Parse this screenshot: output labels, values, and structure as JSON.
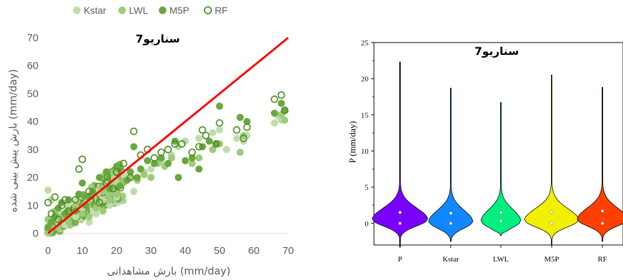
{
  "chart_data": [
    {
      "type": "scatter",
      "title": "سناریو7",
      "xlabel": "بارش مشاهداتی (mm/day)",
      "ylabel": "بارش پیش بینی شده (mm/day)",
      "xlim": [
        0,
        70
      ],
      "ylim": [
        0,
        70
      ],
      "xticks": [
        "0",
        "10",
        "20",
        "30",
        "40",
        "50",
        "60",
        "70"
      ],
      "yticks": [
        "0",
        "10",
        "20",
        "30",
        "40",
        "50",
        "60",
        "70"
      ],
      "grid": false,
      "legend_position": "top",
      "series": [
        {
          "name": "Kstar",
          "marker": "filled-circle",
          "color": "#bfdcab",
          "points": [
            [
              0,
              15.5
            ],
            [
              1,
              12
            ],
            [
              2,
              5
            ],
            [
              3,
              8
            ],
            [
              5,
              3
            ],
            [
              6,
              11
            ],
            [
              8,
              6
            ],
            [
              10,
              9
            ],
            [
              12,
              4
            ],
            [
              14,
              7
            ],
            [
              16,
              12
            ],
            [
              18,
              10
            ],
            [
              20,
              13
            ],
            [
              22,
              21
            ],
            [
              25,
              15
            ],
            [
              28,
              22
            ],
            [
              30,
              23
            ],
            [
              33,
              26
            ],
            [
              36,
              28
            ],
            [
              38,
              31
            ],
            [
              40,
              33
            ],
            [
              44,
              34
            ],
            [
              48,
              36
            ],
            [
              50,
              37
            ],
            [
              52,
              30
            ],
            [
              55,
              34
            ],
            [
              57,
              33
            ],
            [
              58,
              35
            ],
            [
              66,
              39.5
            ],
            [
              67,
              42
            ],
            [
              68,
              40.5
            ],
            [
              69,
              44
            ]
          ]
        },
        {
          "name": "LWL",
          "marker": "filled-circle",
          "color": "#9ccb79",
          "points": [
            [
              0,
              5
            ],
            [
              1,
              3
            ],
            [
              2,
              8
            ],
            [
              3,
              2
            ],
            [
              4,
              6
            ],
            [
              6,
              4
            ],
            [
              8,
              10
            ],
            [
              10,
              7
            ],
            [
              12,
              6
            ],
            [
              14,
              9
            ],
            [
              16,
              8
            ],
            [
              18,
              12
            ],
            [
              20,
              14
            ],
            [
              22,
              18
            ],
            [
              24,
              20
            ],
            [
              26,
              19
            ],
            [
              28,
              21
            ],
            [
              30,
              20
            ],
            [
              32,
              25
            ],
            [
              34,
              24
            ],
            [
              36,
              27
            ],
            [
              40,
              26
            ],
            [
              42,
              25
            ],
            [
              44,
              27
            ],
            [
              48,
              30
            ],
            [
              50,
              32
            ],
            [
              56,
              29
            ],
            [
              57,
              35
            ],
            [
              68,
              42.5
            ],
            [
              69,
              40.5
            ]
          ]
        },
        {
          "name": "M5P",
          "marker": "filled-circle",
          "color": "#6aa73d",
          "points": [
            [
              0,
              2
            ],
            [
              1,
              4
            ],
            [
              2,
              6
            ],
            [
              3,
              9
            ],
            [
              4,
              11
            ],
            [
              5,
              7
            ],
            [
              6,
              12
            ],
            [
              8,
              8
            ],
            [
              9,
              14
            ],
            [
              10,
              18
            ],
            [
              11,
              10
            ],
            [
              12,
              13
            ],
            [
              13,
              15
            ],
            [
              15,
              20
            ],
            [
              17,
              22
            ],
            [
              18,
              16
            ],
            [
              20,
              24
            ],
            [
              21,
              17
            ],
            [
              23,
              19
            ],
            [
              24,
              22
            ],
            [
              25,
              31
            ],
            [
              26,
              20
            ],
            [
              27,
              23
            ],
            [
              29,
              26
            ],
            [
              31,
              25
            ],
            [
              33,
              27
            ],
            [
              35,
              25
            ],
            [
              37,
              33
            ],
            [
              38,
              20
            ],
            [
              40,
              26
            ],
            [
              42,
              27
            ],
            [
              44,
              23
            ],
            [
              45,
              31
            ],
            [
              47,
              33
            ],
            [
              49,
              32
            ],
            [
              50,
              45.5
            ],
            [
              56,
              41.5
            ],
            [
              58,
              40
            ],
            [
              66,
              43
            ],
            [
              68,
              46.5
            ],
            [
              69,
              44
            ]
          ]
        },
        {
          "name": "RF",
          "marker": "open-circle",
          "color": "#4f8f26",
          "points": [
            [
              0,
              11
            ],
            [
              1,
              7
            ],
            [
              2,
              13
            ],
            [
              3,
              5
            ],
            [
              4,
              10
            ],
            [
              5,
              12
            ],
            [
              6,
              8
            ],
            [
              8,
              12
            ],
            [
              9,
              23
            ],
            [
              10,
              26.5
            ],
            [
              12,
              15
            ],
            [
              15,
              11
            ],
            [
              17,
              18
            ],
            [
              19,
              16
            ],
            [
              20,
              22
            ],
            [
              22,
              25
            ],
            [
              24,
              20
            ],
            [
              25,
              36.5
            ],
            [
              27,
              28
            ],
            [
              29,
              30
            ],
            [
              31,
              27
            ],
            [
              33,
              29
            ],
            [
              35,
              30
            ],
            [
              37,
              32
            ],
            [
              39,
              32
            ],
            [
              42,
              29
            ],
            [
              44,
              31
            ],
            [
              45,
              37
            ],
            [
              46,
              35
            ],
            [
              49,
              32
            ],
            [
              50,
              39.5
            ],
            [
              55,
              37
            ],
            [
              57,
              34
            ],
            [
              58,
              38
            ],
            [
              66,
              48
            ],
            [
              68,
              49.5
            ],
            [
              69,
              44
            ]
          ]
        },
        {
          "name": "",
          "marker": "line",
          "color": "#ff0000",
          "points": [
            [
              0,
              0
            ],
            [
              70,
              70
            ]
          ]
        }
      ]
    },
    {
      "type": "violin",
      "title": "سناریو7",
      "ylabel": "P (mm/day)",
      "ylim": [
        -3,
        25
      ],
      "yticks": [
        "0",
        "5",
        "10",
        "15",
        "20",
        "25"
      ],
      "categories": [
        "P",
        "Kstar",
        "LWL",
        "M5P",
        "RF"
      ],
      "colors": [
        "#7a00ff",
        "#1188ff",
        "#00f080",
        "#f0f000",
        "#ff4000"
      ],
      "max": [
        22.3,
        18.7,
        16.7,
        20.5,
        18.8
      ],
      "min": [
        -3.2,
        -2.5,
        -1.7,
        -3,
        -2.5
      ],
      "mean": [
        1.5,
        1.4,
        1.5,
        1.6,
        1.7
      ],
      "median": [
        0,
        0,
        0.3,
        0,
        0
      ],
      "peak_y": [
        0.5,
        0.2,
        0.3,
        0.4,
        0.5
      ],
      "peak_halfwidth": [
        0.53,
        0.42,
        0.38,
        0.52,
        0.48
      ]
    }
  ]
}
